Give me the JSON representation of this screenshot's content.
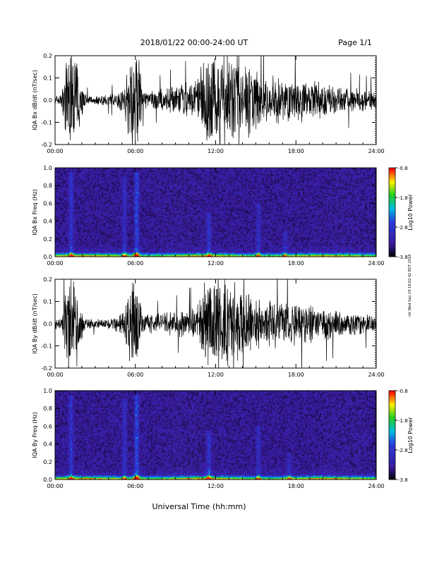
{
  "header": {
    "title": "2018/01/22  00:00-24:00 UT",
    "page": "Page 1/1"
  },
  "footer": {
    "xlabel": "Universal Time (hh:mm)",
    "stamp": "ntt Wed Sep 19 19:02:42 EDT 2018"
  },
  "colors": {
    "background": "#ffffff",
    "trace": "#000000",
    "spec_low": "#000000",
    "spec_mid": "#3a1a9c",
    "spec_cyan": "#00bbe0",
    "spec_green": "#20d020",
    "spec_yellow": "#ffee00",
    "spec_high": "#ff0000"
  },
  "chart_data": [
    {
      "type": "line",
      "ylabel": "IQA Bx dB/dt (nT/sec)",
      "xlim": [
        0,
        24
      ],
      "ylim": [
        -0.2,
        0.2
      ],
      "x_ticks": [
        "00:00",
        "06:00",
        "12:00",
        "18:00",
        "24:00"
      ],
      "y_ticks": [
        "-0.2",
        "-0.1",
        "0.0",
        "0.1",
        "0.2"
      ],
      "envelope": {
        "x": [
          0,
          0.5,
          0.9,
          1.2,
          1.5,
          2.2,
          2.5,
          3.5,
          4.5,
          5.2,
          5.6,
          5.9,
          6.2,
          6.6,
          7.5,
          9,
          10.5,
          11.2,
          11.6,
          12.5,
          13.5,
          14.3,
          15,
          16,
          17,
          18,
          19,
          20,
          21,
          22,
          24
        ],
        "values": [
          0.02,
          0.03,
          0.2,
          0.2,
          0.2,
          0.03,
          0.02,
          0.02,
          0.03,
          0.06,
          0.2,
          0.2,
          0.2,
          0.04,
          0.04,
          0.06,
          0.08,
          0.2,
          0.2,
          0.2,
          0.2,
          0.2,
          0.12,
          0.1,
          0.1,
          0.09,
          0.08,
          0.07,
          0.06,
          0.05,
          0.04
        ]
      }
    },
    {
      "type": "heatmap",
      "ylabel": "IQA Bx Freq (Hz)",
      "xlim": [
        0,
        24
      ],
      "ylim": [
        0,
        1
      ],
      "x_ticks": [
        "00:00",
        "06:00",
        "12:00",
        "18:00",
        "24:00"
      ],
      "y_ticks": [
        "0.0",
        "0.2",
        "0.4",
        "0.6",
        "0.8",
        "1.0"
      ],
      "colorbar": {
        "label": "Log10 Power",
        "range": [
          -3.8,
          -0.8
        ],
        "ticks": [
          "-0.8",
          "-1.8",
          "-2.8",
          "-3.8"
        ]
      },
      "features": [
        {
          "t": 1.2,
          "f_max": 0.95,
          "level": 0.5
        },
        {
          "t": 5.2,
          "f_max": 0.9,
          "level": 0.4
        },
        {
          "t": 6.1,
          "f_max": 0.95,
          "level": 0.7
        },
        {
          "t": 11.5,
          "f_max": 0.5,
          "level": 0.5
        },
        {
          "t": 15.2,
          "f_max": 0.6,
          "level": 0.4
        },
        {
          "t": 17.2,
          "f_max": 0.3,
          "level": 0.35
        }
      ]
    },
    {
      "type": "line",
      "ylabel": "IQA By dB/dt (nT/sec)",
      "xlim": [
        0,
        24
      ],
      "ylim": [
        -0.2,
        0.2
      ],
      "x_ticks": [
        "00:00",
        "06:00",
        "12:00",
        "18:00",
        "24:00"
      ],
      "y_ticks": [
        "-0.2",
        "-0.1",
        "0.0",
        "0.1",
        "0.2"
      ],
      "envelope": {
        "x": [
          0,
          0.5,
          0.9,
          1.2,
          1.5,
          2.2,
          2.5,
          3.5,
          4.5,
          5.2,
          5.6,
          5.9,
          6.2,
          6.6,
          7.5,
          9,
          10.5,
          11.2,
          11.6,
          12.5,
          13.5,
          14.3,
          15,
          16,
          17,
          18,
          19,
          20,
          21,
          22,
          24
        ],
        "values": [
          0.02,
          0.03,
          0.2,
          0.2,
          0.2,
          0.03,
          0.02,
          0.02,
          0.03,
          0.06,
          0.2,
          0.2,
          0.2,
          0.04,
          0.04,
          0.05,
          0.07,
          0.2,
          0.2,
          0.2,
          0.16,
          0.14,
          0.11,
          0.1,
          0.11,
          0.09,
          0.08,
          0.07,
          0.06,
          0.05,
          0.04
        ]
      }
    },
    {
      "type": "heatmap",
      "ylabel": "IQA By Freq (Hz)",
      "xlim": [
        0,
        24
      ],
      "ylim": [
        0,
        1
      ],
      "x_ticks": [
        "00:00",
        "06:00",
        "12:00",
        "18:00",
        "24:00"
      ],
      "y_ticks": [
        "0.0",
        "0.2",
        "0.4",
        "0.6",
        "0.8",
        "1.0"
      ],
      "colorbar": {
        "label": "Log10 Power",
        "range": [
          -3.8,
          -0.8
        ],
        "ticks": [
          "-0.8",
          "-1.8",
          "-2.8",
          "-3.8"
        ]
      },
      "features": [
        {
          "t": 1.2,
          "f_max": 0.95,
          "level": 0.5
        },
        {
          "t": 5.2,
          "f_max": 0.9,
          "level": 0.4
        },
        {
          "t": 6.1,
          "f_max": 0.95,
          "level": 0.75
        },
        {
          "t": 11.5,
          "f_max": 0.55,
          "level": 0.55
        },
        {
          "t": 15.2,
          "f_max": 0.6,
          "level": 0.4
        },
        {
          "t": 17.5,
          "f_max": 0.3,
          "level": 0.35
        }
      ]
    }
  ]
}
